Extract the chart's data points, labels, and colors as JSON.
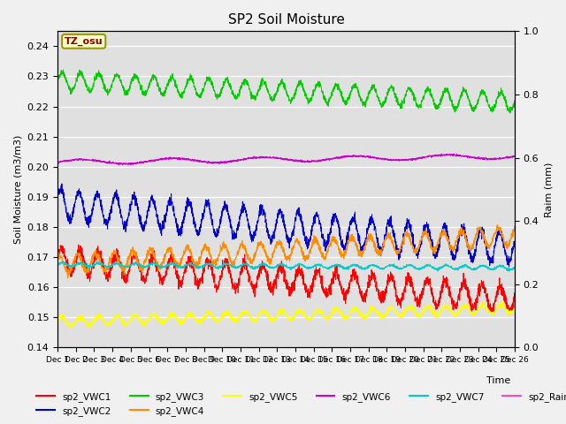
{
  "title": "SP2 Soil Moisture",
  "ylabel_left": "Soil Moisture (m3/m3)",
  "ylabel_right": "Raim (mm)",
  "xlabel": "Time",
  "annotation": "TZ_osu",
  "annotation_color": "#8B0000",
  "annotation_bg": "#FFFFCC",
  "annotation_border": "#999900",
  "ylim_left": [
    0.14,
    0.245
  ],
  "ylim_right": [
    0.0,
    1.0
  ],
  "fig_facecolor": "#F0F0F0",
  "plot_bg_color": "#E0E0E0",
  "series": {
    "sp2_VWC1": {
      "color": "#FF0000",
      "label": "sp2_VWC1"
    },
    "sp2_VWC2": {
      "color": "#0000CC",
      "label": "sp2_VWC2"
    },
    "sp2_VWC3": {
      "color": "#00CC00",
      "label": "sp2_VWC3"
    },
    "sp2_VWC4": {
      "color": "#FF8C00",
      "label": "sp2_VWC4"
    },
    "sp2_VWC5": {
      "color": "#FFFF00",
      "label": "sp2_VWC5"
    },
    "sp2_VWC6": {
      "color": "#CC00CC",
      "label": "sp2_VWC6"
    },
    "sp2_VWC7": {
      "color": "#00CCCC",
      "label": "sp2_VWC7"
    },
    "sp2_Rain": {
      "color": "#FF44CC",
      "label": "sp2_Rain"
    }
  },
  "n_points": 2600,
  "start_day": 1,
  "end_day": 26
}
